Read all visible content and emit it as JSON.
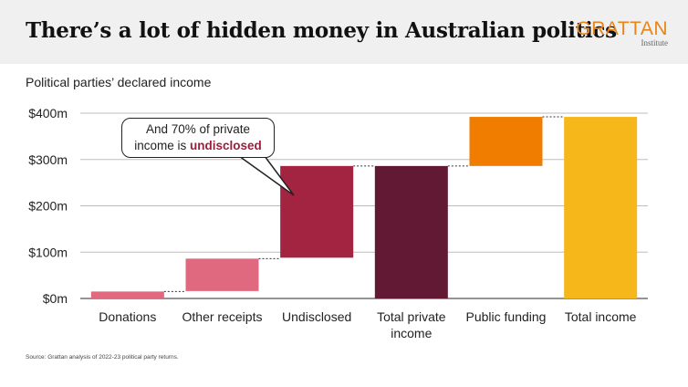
{
  "header": {
    "title": "There’s a lot of hidden money in Australian politics",
    "logo_main": "GRATTAN",
    "logo_sub": "Institute"
  },
  "chart_data": {
    "type": "bar",
    "subtype": "waterfall",
    "title": "There’s a lot of hidden money in Australian politics",
    "subtitle": "Political parties’ declared income",
    "unit": "$m",
    "ylim": [
      0,
      400
    ],
    "yticks": [
      0,
      100,
      200,
      300,
      400
    ],
    "ytick_labels": [
      "$0m",
      "$100m",
      "$200m",
      "$300m",
      "$400m"
    ],
    "categories": [
      "Donations",
      "Other receipts",
      "Undisclosed",
      "Total private income",
      "Public funding",
      "Total income"
    ],
    "category_lines": [
      [
        "Donations"
      ],
      [
        "Other receipts"
      ],
      [
        "Undisclosed"
      ],
      [
        "Total private",
        "income"
      ],
      [
        "Public funding"
      ],
      [
        "Total income"
      ]
    ],
    "bars": [
      {
        "category": "Donations",
        "start": 0,
        "end": 15,
        "color": "#e0687f"
      },
      {
        "category": "Other receipts",
        "start": 16,
        "end": 86,
        "color": "#e0687f"
      },
      {
        "category": "Undisclosed",
        "start": 88,
        "end": 286,
        "color": "#a32440"
      },
      {
        "category": "Total private income",
        "start": 0,
        "end": 286,
        "color": "#621a34"
      },
      {
        "category": "Public funding",
        "start": 286,
        "end": 392,
        "color": "#f07d00"
      },
      {
        "category": "Total income",
        "start": 0,
        "end": 392,
        "color": "#f5b71a"
      }
    ],
    "grid": true,
    "annotation": {
      "text_before": "And 70% of private",
      "text_mid": "income is ",
      "text_highlight": "undisclosed",
      "highlight_color": "#9a1f3a"
    },
    "source": "Source: Grattan analysis of 2022-23 political party returns."
  }
}
